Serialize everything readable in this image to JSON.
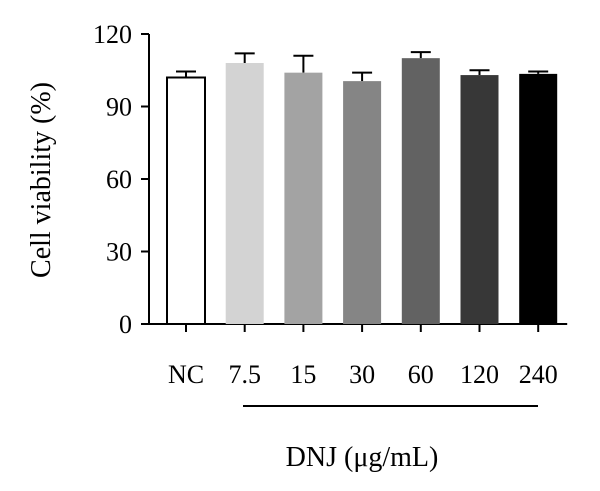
{
  "chart_data": {
    "type": "bar",
    "title": "",
    "xlabel": "",
    "ylabel": "Cell viability (%)",
    "group_label": "DNJ (μg/mL)",
    "categories": [
      "NC",
      "7.5",
      "15",
      "30",
      "60",
      "120",
      "240"
    ],
    "values": [
      102,
      108,
      104,
      100.5,
      110,
      103,
      103.5
    ],
    "errors": [
      2.5,
      4,
      7,
      3.5,
      2.5,
      2,
      1
    ],
    "colors": [
      "#ffffff",
      "#d3d3d3",
      "#a3a3a3",
      "#858585",
      "#626262",
      "#373737",
      "#000000"
    ],
    "ylim": [
      0,
      120
    ],
    "yticks": [
      "0",
      "30",
      "60",
      "90",
      "120"
    ],
    "grid": false,
    "legend": "none"
  }
}
